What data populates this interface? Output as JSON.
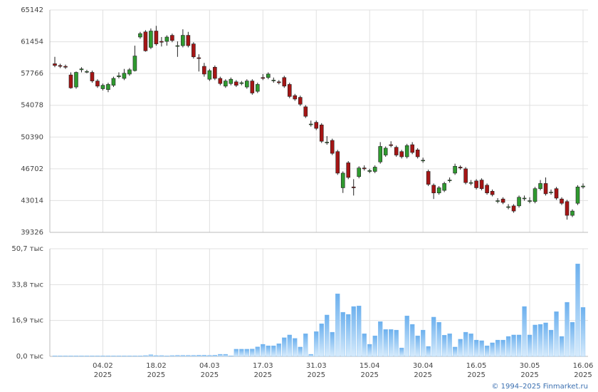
{
  "chart_data": {
    "type": "candlestick",
    "categories": [
      null,
      null,
      null,
      null,
      null,
      null,
      null,
      null,
      null,
      "04.02 2025",
      null,
      null,
      null,
      null,
      null,
      null,
      null,
      null,
      null,
      "18.02 2025",
      null,
      null,
      null,
      null,
      null,
      null,
      null,
      null,
      null,
      "04.03 2025",
      null,
      null,
      null,
      null,
      null,
      null,
      null,
      null,
      null,
      "17.03 2025",
      null,
      null,
      null,
      null,
      null,
      null,
      null,
      null,
      null,
      "31.03 2025",
      null,
      null,
      null,
      null,
      null,
      null,
      null,
      null,
      null,
      "15.04 2025",
      null,
      null,
      null,
      null,
      null,
      null,
      null,
      null,
      null,
      "30.04 2025",
      null,
      null,
      null,
      null,
      null,
      null,
      null,
      null,
      null,
      "16.05 2025",
      null,
      null,
      null,
      null,
      null,
      null,
      null,
      null,
      null,
      "30.05 2025",
      null,
      null,
      null,
      null,
      null,
      null,
      null,
      null,
      null,
      "16.06 2025"
    ],
    "open": [
      58900,
      58700,
      58600,
      57600,
      56200,
      58200,
      58000,
      57900,
      56900,
      56000,
      55900,
      56400,
      57400,
      57200,
      57700,
      58100,
      62000,
      62600,
      60800,
      62700,
      61500,
      61500,
      62200,
      61000,
      61000,
      62200,
      61200,
      59600,
      58600,
      57100,
      58500,
      57200,
      56300,
      56600,
      56800,
      56600,
      56200,
      56900,
      55700,
      57300,
      57300,
      57000,
      56800,
      57300,
      56500,
      55200,
      55000,
      53900,
      51900,
      52100,
      51800,
      49800,
      50000,
      48700,
      44500,
      47400,
      44600,
      45800,
      46800,
      46400,
      46400,
      47500,
      48300,
      49500,
      49200,
      48700,
      48100,
      49500,
      48900,
      47700,
      46400,
      44800,
      43900,
      44200,
      45400,
      46200,
      46900,
      46700,
      45100,
      45300,
      45400,
      44800,
      44100,
      43000,
      43200,
      42300,
      42400,
      42400,
      43300,
      43000,
      42900,
      44400,
      45000,
      44000,
      44400,
      43200,
      42900,
      41300,
      42700,
      44600
    ],
    "high": [
      59700,
      58900,
      58800,
      57900,
      58000,
      58500,
      58200,
      58100,
      57100,
      56600,
      56700,
      57400,
      57900,
      58300,
      58400,
      61000,
      62600,
      62800,
      63000,
      63300,
      62000,
      62200,
      62400,
      61500,
      62900,
      62600,
      61400,
      60000,
      59000,
      58300,
      58700,
      57400,
      57100,
      57300,
      57000,
      56900,
      57100,
      57100,
      56700,
      57700,
      57900,
      57300,
      57000,
      57500,
      56700,
      55400,
      55200,
      54100,
      52300,
      52300,
      52000,
      50500,
      50200,
      48900,
      46400,
      47600,
      45500,
      47000,
      47100,
      46700,
      47100,
      49800,
      49300,
      49900,
      49400,
      48900,
      49600,
      49800,
      49100,
      48000,
      46600,
      45000,
      44700,
      45200,
      45700,
      47300,
      47100,
      46900,
      45400,
      45500,
      45600,
      45000,
      44300,
      43300,
      43400,
      42600,
      42600,
      43600,
      43600,
      43400,
      44600,
      45400,
      45700,
      44300,
      44600,
      43400,
      43100,
      42000,
      44800,
      45000
    ],
    "low": [
      58500,
      58400,
      58300,
      56000,
      56000,
      57900,
      57800,
      56700,
      56100,
      55800,
      55600,
      56200,
      57200,
      57000,
      57500,
      58000,
      61800,
      60300,
      60600,
      61000,
      60900,
      61000,
      61400,
      59700,
      60800,
      60800,
      59500,
      58000,
      57400,
      56900,
      57000,
      56400,
      56100,
      56400,
      56200,
      56400,
      56000,
      55300,
      55500,
      57000,
      57100,
      56700,
      56500,
      56100,
      54900,
      54600,
      54000,
      52600,
      51600,
      51200,
      49700,
      49500,
      48300,
      46000,
      43900,
      45500,
      43600,
      45600,
      46500,
      46200,
      46200,
      47300,
      48100,
      49200,
      48100,
      47900,
      47900,
      48400,
      47900,
      47400,
      44700,
      43200,
      43700,
      44000,
      45100,
      46000,
      46600,
      44900,
      44800,
      44300,
      44200,
      43700,
      43500,
      42700,
      42600,
      42000,
      41600,
      42200,
      43000,
      42700,
      42700,
      44200,
      43600,
      43700,
      43100,
      42500,
      40800,
      41100,
      42500,
      44400
    ],
    "close": [
      58700,
      58600,
      58500,
      56100,
      57900,
      58300,
      58000,
      56900,
      56300,
      56400,
      56500,
      57200,
      57500,
      57800,
      58200,
      59800,
      62400,
      60400,
      62700,
      61200,
      61400,
      62000,
      61600,
      61000,
      62200,
      61000,
      59700,
      59500,
      57700,
      58100,
      57200,
      56600,
      56900,
      57100,
      56400,
      56700,
      56900,
      55500,
      56500,
      57200,
      57700,
      57000,
      56700,
      56300,
      55100,
      54800,
      54200,
      52800,
      51900,
      51400,
      49900,
      49800,
      48500,
      46200,
      46200,
      45700,
      44500,
      46800,
      46700,
      46500,
      46900,
      49300,
      49100,
      49400,
      48300,
      48100,
      49400,
      48600,
      48100,
      47700,
      44900,
      43900,
      44500,
      45000,
      45400,
      47000,
      46800,
      45100,
      45100,
      44500,
      44400,
      43900,
      43700,
      43000,
      42800,
      42300,
      41800,
      43400,
      43300,
      43000,
      44400,
      45000,
      43800,
      44000,
      43300,
      42700,
      41300,
      41800,
      44600,
      44700
    ],
    "up_color": "#2f9a2f",
    "down_color": "#a51515",
    "ylim": [
      39326,
      65142
    ],
    "yticks": [
      39326,
      43014,
      46702,
      50390,
      54078,
      57766,
      61454,
      65142
    ],
    "grid": true,
    "volume": {
      "type": "bar",
      "color": "#7ab9ef",
      "values": [
        0.3,
        0.3,
        0.3,
        0.3,
        0.3,
        0.3,
        0.3,
        0.3,
        0.3,
        0.3,
        0.3,
        0.3,
        0.3,
        0.3,
        0.3,
        0.3,
        0.3,
        0.4,
        0.8,
        0.4,
        0.4,
        0.3,
        0.4,
        0.5,
        0.5,
        0.5,
        0.5,
        0.6,
        0.6,
        0.5,
        0.6,
        1.0,
        1.0,
        0.3,
        3.4,
        3.4,
        3.4,
        3.5,
        4.5,
        5.7,
        5.0,
        5.0,
        6.0,
        8.8,
        10.1,
        8.5,
        4.4,
        10.7,
        1.0,
        11.7,
        15.4,
        19.5,
        11.4,
        29.5,
        20.8,
        19.8,
        23.5,
        23.8,
        10.7,
        5.7,
        9.7,
        16.4,
        12.7,
        12.7,
        12.4,
        4.0,
        19.1,
        15.1,
        9.7,
        12.4,
        4.7,
        18.5,
        16.1,
        10.0,
        10.7,
        4.4,
        8.1,
        11.4,
        10.7,
        7.7,
        7.4,
        5.0,
        6.4,
        7.7,
        7.7,
        9.4,
        10.1,
        10.1,
        23.5,
        10.1,
        14.8,
        15.1,
        15.8,
        12.4,
        21.1,
        9.4,
        25.5,
        16.1,
        43.6,
        23.1
      ],
      "ylim": [
        0,
        50.7
      ],
      "yticks": [
        {
          "value": 0,
          "label": "0,0 тыс"
        },
        {
          "value": 16.9,
          "label": "16,9 тыс"
        },
        {
          "value": 33.8,
          "label": "33,8 тыс"
        },
        {
          "value": 50.7,
          "label": "50,7 тыс"
        }
      ]
    }
  },
  "footer": "© 1994–2025 Finmarket.ru"
}
